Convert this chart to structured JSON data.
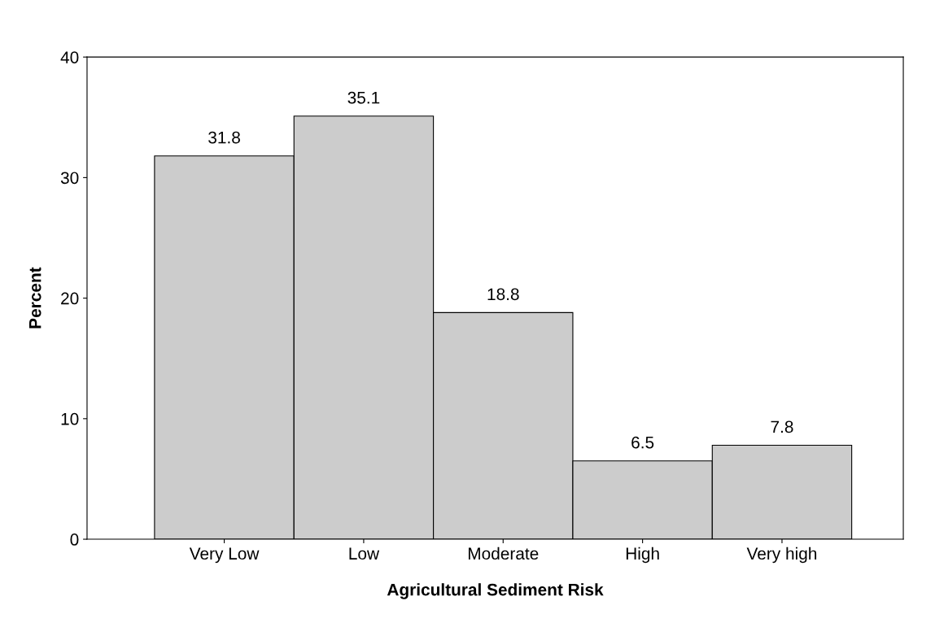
{
  "chart_data": {
    "type": "bar",
    "xlabel": "Agricultural Sediment Risk",
    "ylabel": "Percent",
    "categories": [
      "Very Low",
      "Low",
      "Moderate",
      "High",
      "Very high"
    ],
    "values": [
      31.8,
      35.1,
      18.8,
      6.5,
      7.8
    ],
    "color": "#cccccc",
    "ylim": [
      0,
      40
    ],
    "yticks": [
      0,
      10,
      20,
      30,
      40
    ],
    "grid": false,
    "data_labels": true
  }
}
